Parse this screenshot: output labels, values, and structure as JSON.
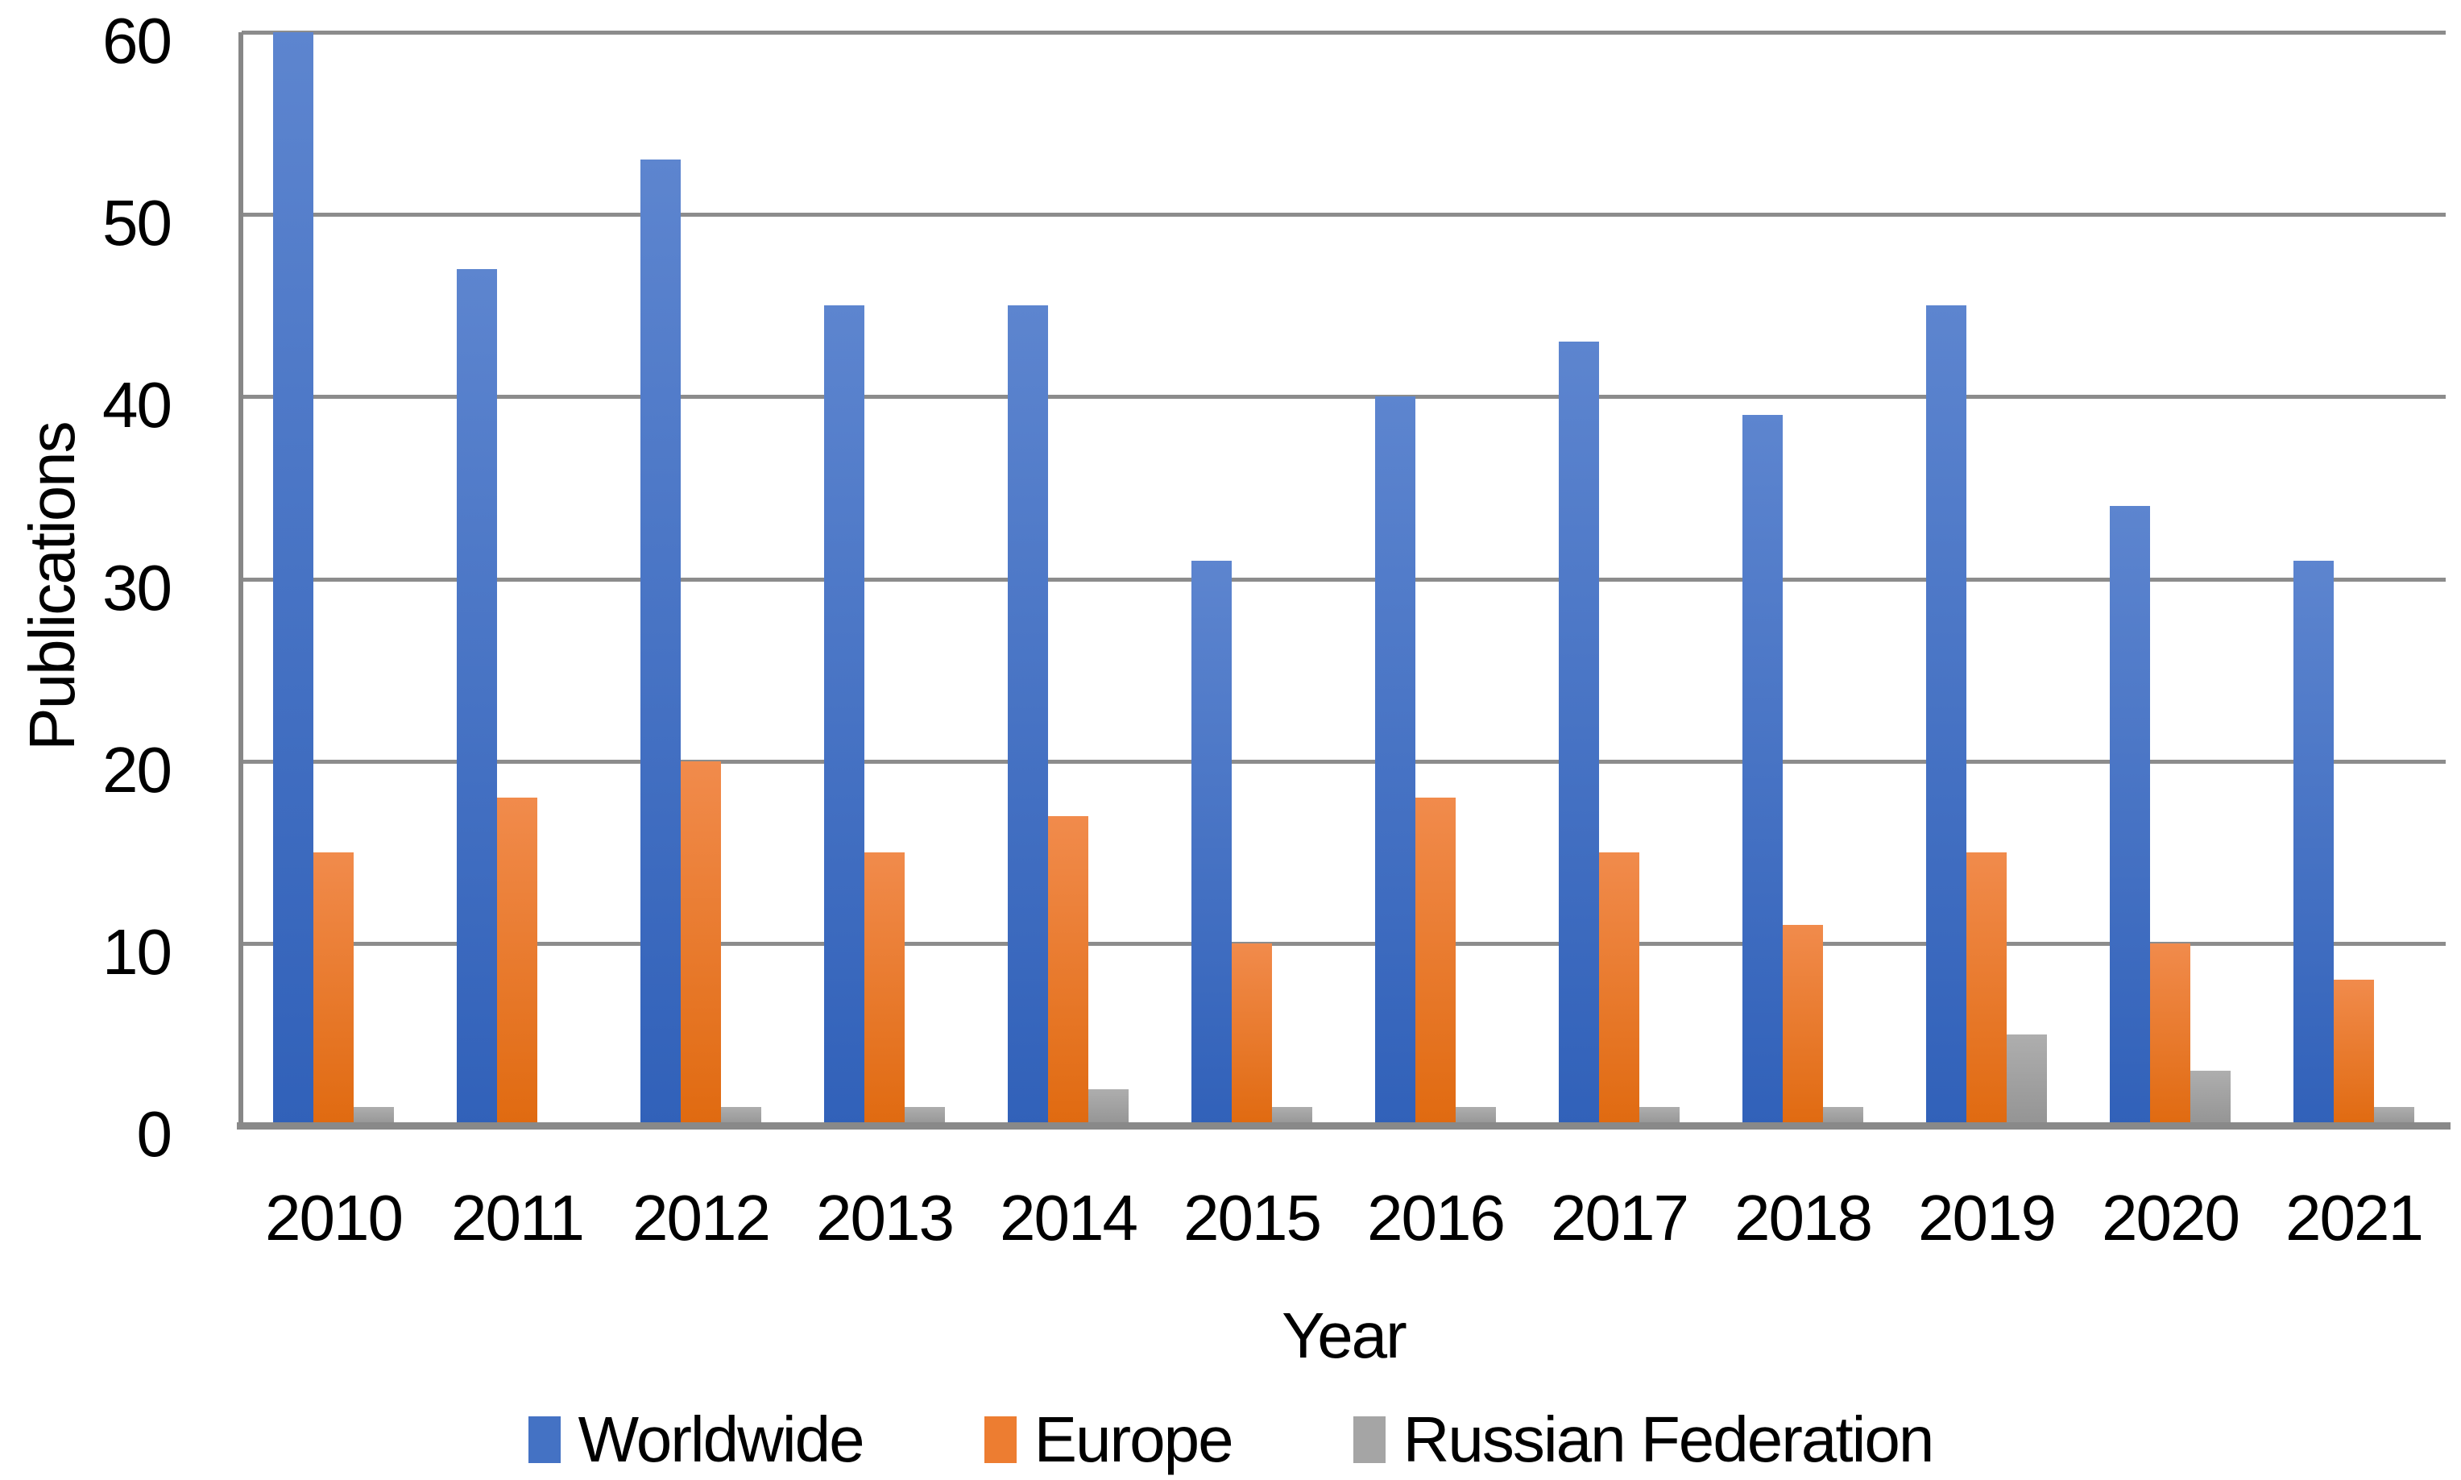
{
  "chart_data": {
    "type": "bar",
    "title": "",
    "xlabel": "Year",
    "ylabel": "Publications",
    "categories": [
      "2010",
      "2011",
      "2012",
      "2013",
      "2014",
      "2015",
      "2016",
      "2017",
      "2018",
      "2019",
      "2020",
      "2021"
    ],
    "series": [
      {
        "name": "Worldwide",
        "color": "#4472C4",
        "values": [
          60,
          47,
          53,
          45,
          45,
          31,
          40,
          43,
          39,
          45,
          34,
          31
        ]
      },
      {
        "name": "Europe",
        "color": "#ED7D31",
        "values": [
          15,
          18,
          20,
          15,
          17,
          10,
          18,
          15,
          11,
          15,
          10,
          8
        ]
      },
      {
        "name": "Russian Federation",
        "color": "#A5A5A5",
        "values": [
          1,
          0,
          1,
          1,
          2,
          1,
          1,
          1,
          1,
          5,
          3,
          1
        ]
      }
    ],
    "y_ticks": [
      0,
      10,
      20,
      30,
      40,
      50,
      60
    ],
    "ylim": [
      0,
      60
    ],
    "grid": true,
    "legend_position": "bottom",
    "gridline_color": "#8C8C8C",
    "background_color": "#FFFFFF"
  }
}
